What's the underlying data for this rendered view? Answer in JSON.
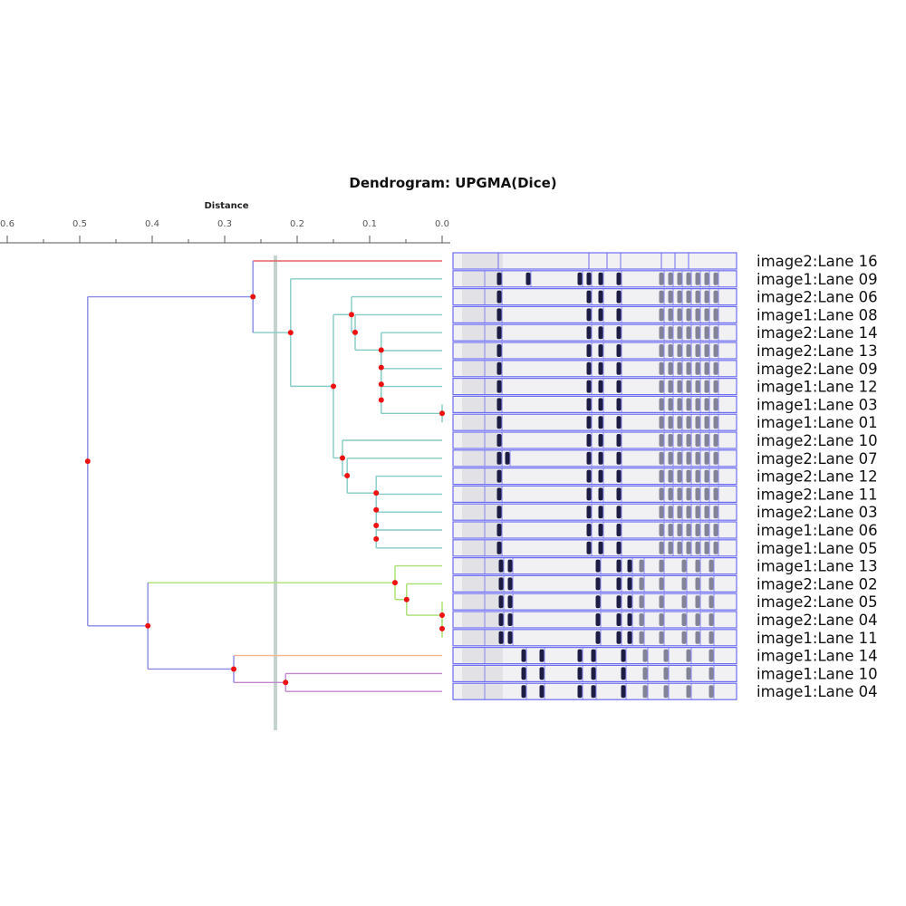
{
  "chart_data": {
    "type": "dendrogram",
    "title": "Dendrogram: UPGMA(Dice)",
    "xlabel": "Distance",
    "xlim": [
      0.6,
      0.0
    ],
    "ticks": [
      "0.6",
      "0.5",
      "0.4",
      "0.3",
      "0.2",
      "0.1",
      "0.0"
    ],
    "cutoff_distance": 0.23,
    "leaves": [
      "image2:Lane 16",
      "image1:Lane 09",
      "image2:Lane 06",
      "image1:Lane 08",
      "image2:Lane 14",
      "image2:Lane 13",
      "image2:Lane 09",
      "image1:Lane 12",
      "image1:Lane 03",
      "image1:Lane 01",
      "image2:Lane 10",
      "image2:Lane 07",
      "image2:Lane 12",
      "image2:Lane 11",
      "image2:Lane 03",
      "image1:Lane 06",
      "image1:Lane 05",
      "image1:Lane 13",
      "image2:Lane 02",
      "image2:Lane 05",
      "image2:Lane 04",
      "image1:Lane 11",
      "image1:Lane 14",
      "image1:Lane 10",
      "image1:Lane 04"
    ],
    "leaf_colors": [
      "#e06666",
      "#86cbc4",
      "#86cbc4",
      "#86cbc4",
      "#86cbc4",
      "#86cbc4",
      "#86cbc4",
      "#86cbc4",
      "#86cbc4",
      "#86cbc4",
      "#86cbc4",
      "#86cbc4",
      "#86cbc4",
      "#86cbc4",
      "#86cbc4",
      "#86cbc4",
      "#86cbc4",
      "#a8e070",
      "#a8e070",
      "#a8e070",
      "#a8e070",
      "#a8e070",
      "#f2b48a",
      "#c387cc",
      "#c387cc"
    ],
    "tree": {
      "d": 0.489,
      "color": "#8a8ae6",
      "c": [
        {
          "d": 0.261,
          "color": "#8a8ae6",
          "c": [
            0,
            {
              "d": 0.209,
              "color": "#86cbc4",
              "c": [
                1,
                {
                  "d": 0.15,
                  "color": "#86cbc4",
                  "c": [
                    {
                      "d": 0.125,
                      "color": "#86cbc4",
                      "c": [
                        2,
                        {
                          "d": 0.12,
                          "color": "#86cbc4",
                          "c": [
                            3,
                            {
                              "d": 0.084,
                              "color": "#86cbc4",
                              "c": [
                                4,
                                {
                                  "d": 0.084,
                                  "color": "#86cbc4",
                                  "c": [
                                    5,
                                    {
                                      "d": 0.084,
                                      "color": "#86cbc4",
                                      "c": [
                                        6,
                                        {
                                          "d": 0.084,
                                          "color": "#86cbc4",
                                          "c": [
                                            7,
                                            {
                                              "d": 0.0,
                                              "color": "#86cbc4",
                                              "c": [
                                                8,
                                                9
                                              ]
                                            }
                                          ]
                                        }
                                      ]
                                    }
                                  ]
                                }
                              ]
                            }
                          ]
                        }
                      ]
                    },
                    {
                      "d": 0.1375,
                      "color": "#86cbc4",
                      "c": [
                        10,
                        {
                          "d": 0.131,
                          "color": "#86cbc4",
                          "c": [
                            11,
                            {
                              "d": 0.091,
                              "color": "#86cbc4",
                              "c": [
                                12,
                                {
                                  "d": 0.091,
                                  "color": "#86cbc4",
                                  "c": [
                                    13,
                                    {
                                      "d": 0.091,
                                      "color": "#86cbc4",
                                      "c": [
                                        14,
                                        {
                                          "d": 0.091,
                                          "color": "#86cbc4",
                                          "c": [
                                            15,
                                            16
                                          ]
                                        }
                                      ]
                                    }
                                  ]
                                }
                              ]
                            }
                          ]
                        }
                      ]
                    }
                  ]
                }
              ]
            }
          ]
        },
        {
          "d": 0.406,
          "color": "#8a8ae6",
          "c": [
            {
              "d": 0.065,
              "color": "#a8e070",
              "c": [
                17,
                {
                  "d": 0.049,
                  "color": "#a8e070",
                  "c": [
                    18,
                    {
                      "d": 0.0,
                      "color": "#a8e070",
                      "c": [
                        19,
                        {
                          "d": 0.0,
                          "color": "#a8e070",
                          "c": [
                            20,
                            21
                          ]
                        }
                      ]
                    }
                  ]
                }
              ]
            },
            {
              "d": 0.2875,
              "color": "#8a8ae6",
              "c": [
                22,
                {
                  "d": 0.216,
                  "color": "#c387cc",
                  "c": [
                    23,
                    24
                  ]
                }
              ]
            }
          ]
        }
      ]
    },
    "colors": {
      "node": "#ee1111",
      "cutoff": "#c5d3d0",
      "lane_border": "#6d6df0",
      "axis": "#555555"
    }
  }
}
